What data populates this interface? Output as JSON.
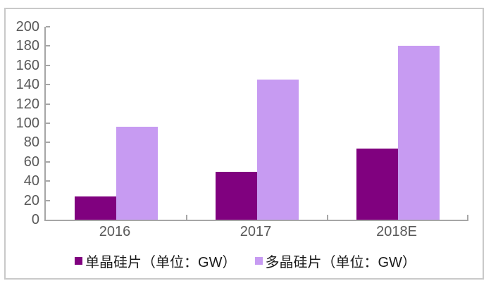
{
  "chart_data": {
    "type": "bar",
    "title": "",
    "categories": [
      "2016",
      "2017",
      "2018E"
    ],
    "series": [
      {
        "name": "单晶硅片（单位：GW）",
        "color": "#80017F",
        "values": [
          24,
          50,
          74
        ]
      },
      {
        "name": "多晶硅片（单位：GW）",
        "color": "#C79BF2",
        "values": [
          96,
          145,
          180
        ]
      }
    ],
    "ylim": [
      0,
      200
    ],
    "yticks": [
      0,
      20,
      40,
      60,
      80,
      100,
      120,
      140,
      160,
      180,
      200
    ],
    "xlabel": "",
    "ylabel": "",
    "grid": false,
    "legend_position": "bottom"
  },
  "colors": {
    "background": "#FFFFFF",
    "frame_border": "#C9C9C9",
    "axis_line": "#A6A6A6",
    "tick_label": "#595959",
    "legend_text": "#1A1A1A"
  }
}
